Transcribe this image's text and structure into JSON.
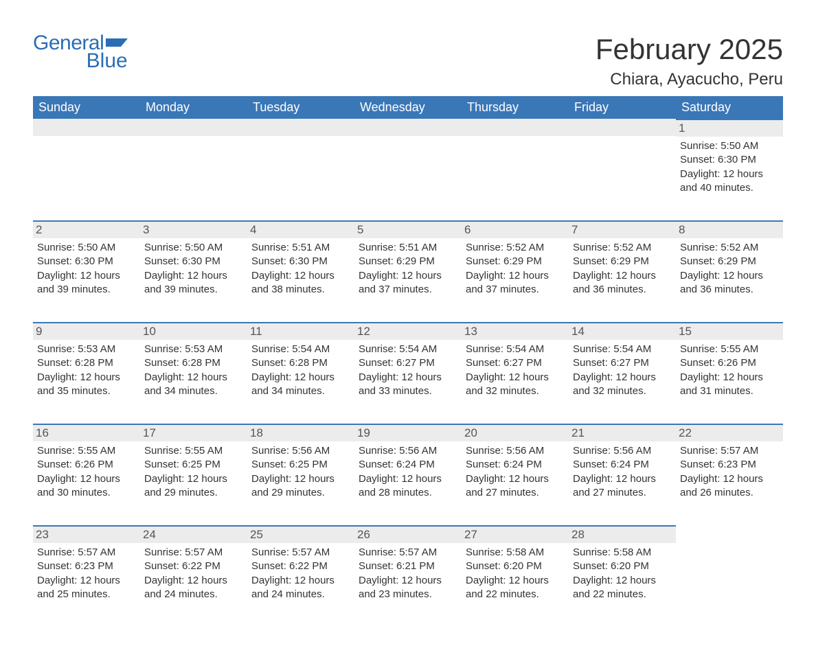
{
  "brand": {
    "word1": "General",
    "word2": "Blue",
    "accent": "#2a6db5"
  },
  "title": "February 2025",
  "location": "Chiara, Ayacucho, Peru",
  "colors": {
    "header_bg": "#3a77b7",
    "header_fg": "#ffffff",
    "row_accent": "#3a77b7",
    "daynum_bg": "#ececec",
    "text": "#333333",
    "background": "#ffffff"
  },
  "fonts": {
    "title_pt": 42,
    "location_pt": 24,
    "dow_pt": 18,
    "daynum_pt": 17,
    "body_pt": 15
  },
  "days_of_week": [
    "Sunday",
    "Monday",
    "Tuesday",
    "Wednesday",
    "Thursday",
    "Friday",
    "Saturday"
  ],
  "weeks": [
    [
      null,
      null,
      null,
      null,
      null,
      null,
      {
        "n": "1",
        "sunrise": "5:50 AM",
        "sunset": "6:30 PM",
        "daylight": "12 hours and 40 minutes."
      }
    ],
    [
      {
        "n": "2",
        "sunrise": "5:50 AM",
        "sunset": "6:30 PM",
        "daylight": "12 hours and 39 minutes."
      },
      {
        "n": "3",
        "sunrise": "5:50 AM",
        "sunset": "6:30 PM",
        "daylight": "12 hours and 39 minutes."
      },
      {
        "n": "4",
        "sunrise": "5:51 AM",
        "sunset": "6:30 PM",
        "daylight": "12 hours and 38 minutes."
      },
      {
        "n": "5",
        "sunrise": "5:51 AM",
        "sunset": "6:29 PM",
        "daylight": "12 hours and 37 minutes."
      },
      {
        "n": "6",
        "sunrise": "5:52 AM",
        "sunset": "6:29 PM",
        "daylight": "12 hours and 37 minutes."
      },
      {
        "n": "7",
        "sunrise": "5:52 AM",
        "sunset": "6:29 PM",
        "daylight": "12 hours and 36 minutes."
      },
      {
        "n": "8",
        "sunrise": "5:52 AM",
        "sunset": "6:29 PM",
        "daylight": "12 hours and 36 minutes."
      }
    ],
    [
      {
        "n": "9",
        "sunrise": "5:53 AM",
        "sunset": "6:28 PM",
        "daylight": "12 hours and 35 minutes."
      },
      {
        "n": "10",
        "sunrise": "5:53 AM",
        "sunset": "6:28 PM",
        "daylight": "12 hours and 34 minutes."
      },
      {
        "n": "11",
        "sunrise": "5:54 AM",
        "sunset": "6:28 PM",
        "daylight": "12 hours and 34 minutes."
      },
      {
        "n": "12",
        "sunrise": "5:54 AM",
        "sunset": "6:27 PM",
        "daylight": "12 hours and 33 minutes."
      },
      {
        "n": "13",
        "sunrise": "5:54 AM",
        "sunset": "6:27 PM",
        "daylight": "12 hours and 32 minutes."
      },
      {
        "n": "14",
        "sunrise": "5:54 AM",
        "sunset": "6:27 PM",
        "daylight": "12 hours and 32 minutes."
      },
      {
        "n": "15",
        "sunrise": "5:55 AM",
        "sunset": "6:26 PM",
        "daylight": "12 hours and 31 minutes."
      }
    ],
    [
      {
        "n": "16",
        "sunrise": "5:55 AM",
        "sunset": "6:26 PM",
        "daylight": "12 hours and 30 minutes."
      },
      {
        "n": "17",
        "sunrise": "5:55 AM",
        "sunset": "6:25 PM",
        "daylight": "12 hours and 29 minutes."
      },
      {
        "n": "18",
        "sunrise": "5:56 AM",
        "sunset": "6:25 PM",
        "daylight": "12 hours and 29 minutes."
      },
      {
        "n": "19",
        "sunrise": "5:56 AM",
        "sunset": "6:24 PM",
        "daylight": "12 hours and 28 minutes."
      },
      {
        "n": "20",
        "sunrise": "5:56 AM",
        "sunset": "6:24 PM",
        "daylight": "12 hours and 27 minutes."
      },
      {
        "n": "21",
        "sunrise": "5:56 AM",
        "sunset": "6:24 PM",
        "daylight": "12 hours and 27 minutes."
      },
      {
        "n": "22",
        "sunrise": "5:57 AM",
        "sunset": "6:23 PM",
        "daylight": "12 hours and 26 minutes."
      }
    ],
    [
      {
        "n": "23",
        "sunrise": "5:57 AM",
        "sunset": "6:23 PM",
        "daylight": "12 hours and 25 minutes."
      },
      {
        "n": "24",
        "sunrise": "5:57 AM",
        "sunset": "6:22 PM",
        "daylight": "12 hours and 24 minutes."
      },
      {
        "n": "25",
        "sunrise": "5:57 AM",
        "sunset": "6:22 PM",
        "daylight": "12 hours and 24 minutes."
      },
      {
        "n": "26",
        "sunrise": "5:57 AM",
        "sunset": "6:21 PM",
        "daylight": "12 hours and 23 minutes."
      },
      {
        "n": "27",
        "sunrise": "5:58 AM",
        "sunset": "6:20 PM",
        "daylight": "12 hours and 22 minutes."
      },
      {
        "n": "28",
        "sunrise": "5:58 AM",
        "sunset": "6:20 PM",
        "daylight": "12 hours and 22 minutes."
      },
      null
    ]
  ],
  "labels": {
    "sunrise": "Sunrise: ",
    "sunset": "Sunset: ",
    "daylight": "Daylight: "
  }
}
